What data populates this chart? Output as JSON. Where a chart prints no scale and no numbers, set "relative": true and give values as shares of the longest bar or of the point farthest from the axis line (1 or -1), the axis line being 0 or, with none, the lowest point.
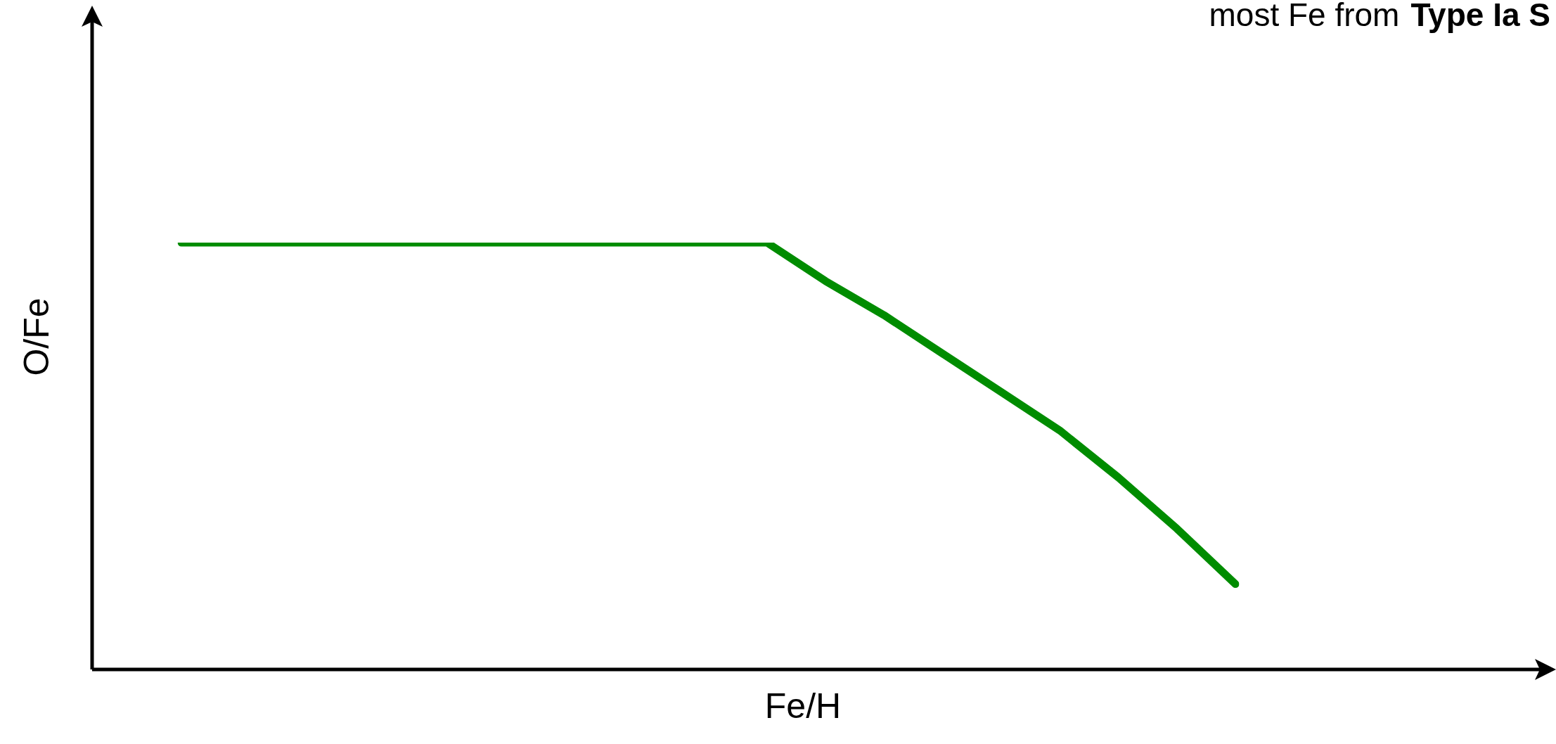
{
  "chart_data": {
    "type": "line",
    "relative": true,
    "xlabel": "Fe/H",
    "ylabel": "O/Fe",
    "annotations": [
      "most Fe from",
      "Type Ia S"
    ],
    "categories": [
      null,
      null,
      null,
      null,
      null,
      null,
      null,
      null,
      null,
      null,
      null,
      null,
      null,
      null,
      null,
      null,
      null,
      null,
      null
    ],
    "series": [
      {
        "color": "#008c00",
        "values": [
          1,
          1,
          1,
          1,
          1,
          1,
          1,
          1,
          1,
          1,
          1,
          0.91,
          0.83,
          0.74,
          0.65,
          0.56,
          0.45,
          0.33,
          0.2
        ]
      }
    ],
    "marker": "none",
    "line_style": "solid",
    "legend": false
  }
}
